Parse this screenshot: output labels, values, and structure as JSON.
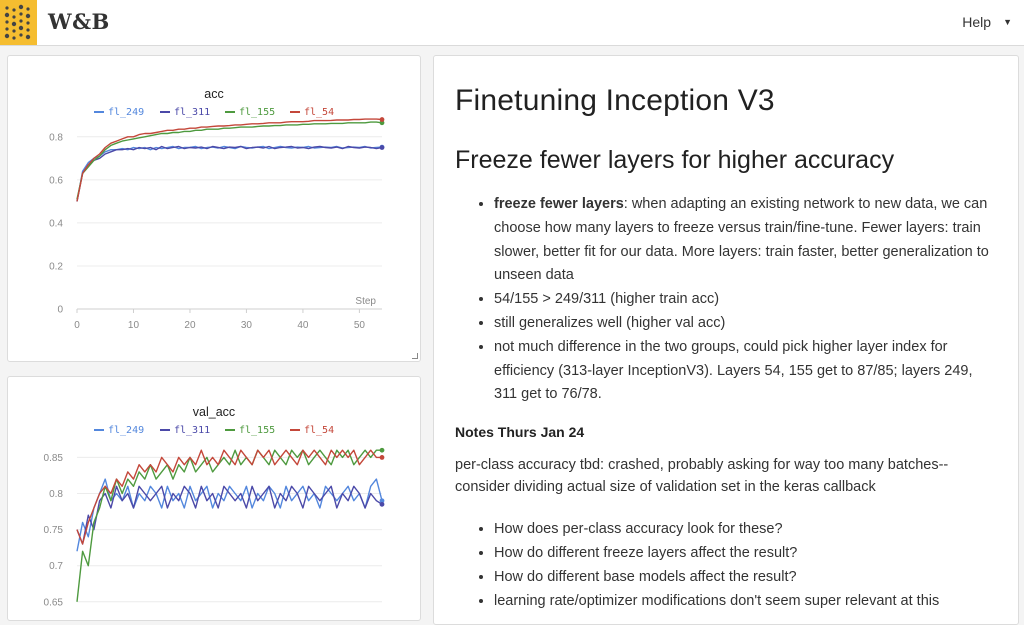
{
  "header": {
    "brand": "W&B",
    "help_label": "Help"
  },
  "charts": [
    {
      "title": "acc",
      "step_label": "Step",
      "legend": [
        "fl_249",
        "fl_311",
        "fl_155",
        "fl_54"
      ],
      "y_ticks": [
        "0.8",
        "0.6",
        "0.4",
        "0.2",
        "0"
      ],
      "x_ticks": [
        "0",
        "10",
        "20",
        "30",
        "40",
        "50"
      ]
    },
    {
      "title": "val_acc",
      "legend": [
        "fl_249",
        "fl_311",
        "fl_155",
        "fl_54"
      ],
      "y_ticks": [
        "0.85",
        "0.8",
        "0.75",
        "0.7",
        "0.65"
      ]
    }
  ],
  "chart_data": [
    {
      "type": "line",
      "title": "acc",
      "xlabel": "Step",
      "ylabel": "",
      "xlim": [
        0,
        54
      ],
      "ylim": [
        0,
        0.85
      ],
      "colors": {
        "fl_249": "#5387dd",
        "fl_311": "#4b49a8",
        "fl_155": "#4e9a3f",
        "fl_54": "#c4473a"
      },
      "x": [
        0,
        1,
        2,
        3,
        4,
        5,
        6,
        7,
        8,
        9,
        10,
        11,
        12,
        13,
        14,
        15,
        16,
        17,
        18,
        19,
        20,
        21,
        22,
        23,
        24,
        25,
        26,
        27,
        28,
        29,
        30,
        31,
        32,
        33,
        34,
        35,
        36,
        37,
        38,
        39,
        40,
        41,
        42,
        43,
        44,
        45,
        46,
        47,
        48,
        49,
        50,
        51,
        52,
        53,
        54
      ],
      "series": [
        {
          "name": "fl_249",
          "values": [
            0.5,
            0.64,
            0.68,
            0.7,
            0.71,
            0.73,
            0.74,
            0.74,
            0.745,
            0.74,
            0.75,
            0.745,
            0.75,
            0.74,
            0.75,
            0.745,
            0.75,
            0.755,
            0.745,
            0.75,
            0.75,
            0.755,
            0.745,
            0.75,
            0.752,
            0.748,
            0.755,
            0.75,
            0.745,
            0.755,
            0.75,
            0.748,
            0.752,
            0.755,
            0.745,
            0.75,
            0.755,
            0.75,
            0.748,
            0.752,
            0.75,
            0.755,
            0.748,
            0.75,
            0.752,
            0.75,
            0.755,
            0.748,
            0.75,
            0.752,
            0.75,
            0.755,
            0.748,
            0.75,
            0.752
          ]
        },
        {
          "name": "fl_311",
          "values": [
            0.5,
            0.63,
            0.67,
            0.69,
            0.7,
            0.72,
            0.73,
            0.74,
            0.74,
            0.745,
            0.74,
            0.75,
            0.745,
            0.75,
            0.74,
            0.755,
            0.745,
            0.75,
            0.755,
            0.745,
            0.75,
            0.748,
            0.752,
            0.745,
            0.755,
            0.75,
            0.745,
            0.752,
            0.75,
            0.755,
            0.745,
            0.75,
            0.752,
            0.748,
            0.755,
            0.745,
            0.75,
            0.752,
            0.755,
            0.748,
            0.75,
            0.745,
            0.752,
            0.755,
            0.75,
            0.748,
            0.752,
            0.745,
            0.755,
            0.75,
            0.748,
            0.752,
            0.75,
            0.745,
            0.75
          ]
        },
        {
          "name": "fl_155",
          "values": [
            0.51,
            0.63,
            0.66,
            0.69,
            0.71,
            0.74,
            0.76,
            0.77,
            0.78,
            0.785,
            0.79,
            0.795,
            0.8,
            0.805,
            0.81,
            0.815,
            0.815,
            0.82,
            0.82,
            0.825,
            0.825,
            0.83,
            0.83,
            0.835,
            0.835,
            0.835,
            0.84,
            0.84,
            0.842,
            0.845,
            0.845,
            0.845,
            0.848,
            0.85,
            0.85,
            0.852,
            0.852,
            0.855,
            0.855,
            0.855,
            0.858,
            0.858,
            0.86,
            0.86,
            0.86,
            0.862,
            0.862,
            0.862,
            0.865,
            0.865,
            0.865,
            0.865,
            0.868,
            0.868,
            0.865
          ]
        },
        {
          "name": "fl_54",
          "values": [
            0.5,
            0.63,
            0.67,
            0.7,
            0.72,
            0.75,
            0.77,
            0.78,
            0.79,
            0.8,
            0.8,
            0.81,
            0.815,
            0.815,
            0.82,
            0.825,
            0.83,
            0.83,
            0.835,
            0.835,
            0.84,
            0.84,
            0.845,
            0.845,
            0.848,
            0.85,
            0.85,
            0.852,
            0.855,
            0.855,
            0.858,
            0.86,
            0.86,
            0.862,
            0.865,
            0.865,
            0.865,
            0.868,
            0.87,
            0.87,
            0.87,
            0.872,
            0.875,
            0.875,
            0.875,
            0.876,
            0.878,
            0.878,
            0.878,
            0.88,
            0.88,
            0.882,
            0.882,
            0.882,
            0.88
          ]
        }
      ]
    },
    {
      "type": "line",
      "title": "val_acc",
      "xlabel": "",
      "ylabel": "",
      "xlim": [
        0,
        54
      ],
      "ylim": [
        0.64,
        0.87
      ],
      "colors": {
        "fl_249": "#5387dd",
        "fl_311": "#4b49a8",
        "fl_155": "#4e9a3f",
        "fl_54": "#c4473a"
      },
      "x": [
        0,
        1,
        2,
        3,
        4,
        5,
        6,
        7,
        8,
        9,
        10,
        11,
        12,
        13,
        14,
        15,
        16,
        17,
        18,
        19,
        20,
        21,
        22,
        23,
        24,
        25,
        26,
        27,
        28,
        29,
        30,
        31,
        32,
        33,
        34,
        35,
        36,
        37,
        38,
        39,
        40,
        41,
        42,
        43,
        44,
        45,
        46,
        47,
        48,
        49,
        50,
        51,
        52,
        53,
        54
      ],
      "series": [
        {
          "name": "fl_249",
          "values": [
            0.72,
            0.76,
            0.74,
            0.78,
            0.8,
            0.82,
            0.79,
            0.8,
            0.79,
            0.81,
            0.78,
            0.8,
            0.79,
            0.81,
            0.8,
            0.78,
            0.81,
            0.79,
            0.8,
            0.78,
            0.81,
            0.79,
            0.8,
            0.81,
            0.78,
            0.8,
            0.79,
            0.81,
            0.8,
            0.79,
            0.81,
            0.78,
            0.8,
            0.79,
            0.81,
            0.8,
            0.78,
            0.81,
            0.79,
            0.8,
            0.81,
            0.79,
            0.8,
            0.78,
            0.81,
            0.8,
            0.79,
            0.8,
            0.81,
            0.79,
            0.8,
            0.78,
            0.81,
            0.82,
            0.79
          ]
        },
        {
          "name": "fl_311",
          "values": [
            0.75,
            0.73,
            0.77,
            0.75,
            0.79,
            0.8,
            0.78,
            0.81,
            0.79,
            0.8,
            0.78,
            0.81,
            0.8,
            0.79,
            0.8,
            0.81,
            0.78,
            0.8,
            0.79,
            0.81,
            0.8,
            0.78,
            0.81,
            0.79,
            0.8,
            0.78,
            0.81,
            0.8,
            0.79,
            0.8,
            0.78,
            0.81,
            0.79,
            0.8,
            0.81,
            0.78,
            0.8,
            0.79,
            0.81,
            0.8,
            0.78,
            0.81,
            0.8,
            0.79,
            0.8,
            0.81,
            0.78,
            0.8,
            0.79,
            0.81,
            0.8,
            0.78,
            0.8,
            0.79,
            0.785
          ]
        },
        {
          "name": "fl_155",
          "values": [
            0.65,
            0.72,
            0.7,
            0.76,
            0.78,
            0.81,
            0.79,
            0.82,
            0.8,
            0.82,
            0.81,
            0.83,
            0.82,
            0.84,
            0.82,
            0.83,
            0.84,
            0.82,
            0.84,
            0.83,
            0.85,
            0.83,
            0.84,
            0.85,
            0.83,
            0.84,
            0.85,
            0.84,
            0.86,
            0.84,
            0.85,
            0.84,
            0.86,
            0.85,
            0.84,
            0.86,
            0.85,
            0.84,
            0.86,
            0.85,
            0.86,
            0.84,
            0.85,
            0.86,
            0.85,
            0.84,
            0.86,
            0.85,
            0.86,
            0.84,
            0.85,
            0.86,
            0.85,
            0.86,
            0.86
          ]
        },
        {
          "name": "fl_54",
          "values": [
            0.75,
            0.73,
            0.76,
            0.78,
            0.8,
            0.81,
            0.8,
            0.82,
            0.81,
            0.83,
            0.82,
            0.84,
            0.83,
            0.84,
            0.83,
            0.85,
            0.84,
            0.83,
            0.85,
            0.84,
            0.85,
            0.84,
            0.86,
            0.84,
            0.85,
            0.84,
            0.86,
            0.85,
            0.84,
            0.86,
            0.85,
            0.84,
            0.86,
            0.85,
            0.86,
            0.84,
            0.85,
            0.86,
            0.85,
            0.84,
            0.86,
            0.85,
            0.86,
            0.85,
            0.84,
            0.86,
            0.85,
            0.86,
            0.85,
            0.86,
            0.84,
            0.85,
            0.86,
            0.85,
            0.85
          ]
        }
      ]
    }
  ],
  "report": {
    "title": "Finetuning Inception V3",
    "subtitle": "Freeze fewer layers for higher accuracy",
    "bullets_1": [
      {
        "bold": "freeze fewer layers",
        "text": ": when adapting an existing network to new data, we can choose how many layers to freeze versus train/fine-tune. Fewer layers: train slower, better fit for our data. More layers: train faster, better generalization to unseen data"
      },
      {
        "bold": "",
        "text": "54/155 > 249/311 (higher train acc)"
      },
      {
        "bold": "",
        "text": "still generalizes well (higher val acc)"
      },
      {
        "bold": "",
        "text": "not much difference in the two groups, could pick higher layer index for efficiency (313-layer InceptionV3). Layers 54, 155 get to 87/85; layers 249, 311 get to 76/78."
      }
    ],
    "notes_heading": "Notes Thurs Jan 24",
    "notes_paragraph": "per-class accuracy tbd: crashed, probably asking for way too many batches--consider dividing actual size of validation set in the keras callback",
    "bullets_2": [
      "How does per-class accuracy look for these?",
      "How do different freeze layers affect the result?",
      "How do different base models affect the result?",
      "learning rate/optimizer modifications don't seem super relevant at this"
    ]
  }
}
